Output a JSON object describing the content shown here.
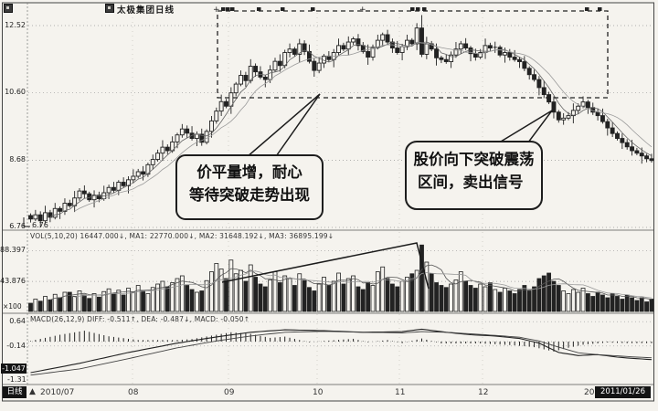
{
  "colors": {
    "paper": "#f5f3ee",
    "ink": "#222222",
    "gray": "#888888"
  },
  "header": {
    "title": "太极集团日线"
  },
  "chart_data": {
    "type": "candlestick",
    "title": "太极集团日线",
    "x_axis": {
      "labels": [
        "2010/07",
        "08",
        "09",
        "10",
        "11",
        "12",
        "2011/01/26"
      ]
    },
    "price_pane": {
      "ylabels": [
        "12.52",
        "10.60",
        "8.68",
        "6.76"
      ],
      "ymin": 6.76,
      "ymax": 12.52,
      "tag": "6.76",
      "open_first": 7.1,
      "wick_up": [
        0.06,
        0.14,
        0.1,
        0.2,
        0.08,
        0.16
      ],
      "wick_dn": [
        0.1,
        0.06,
        0.18,
        0.08,
        0.14,
        0.06,
        0.22
      ],
      "high_overrides": {
        "80": 12.82
      },
      "closes": [
        7.0,
        7.12,
        6.95,
        7.18,
        7.05,
        7.3,
        7.22,
        7.45,
        7.38,
        7.6,
        7.8,
        7.72,
        7.55,
        7.68,
        7.58,
        7.75,
        7.9,
        7.82,
        8.05,
        7.95,
        8.12,
        8.22,
        8.35,
        8.28,
        8.55,
        8.7,
        8.88,
        9.05,
        8.95,
        9.2,
        9.4,
        9.57,
        9.45,
        9.3,
        9.42,
        9.19,
        9.5,
        9.8,
        10.08,
        10.35,
        10.22,
        10.6,
        10.85,
        11.1,
        10.95,
        11.36,
        11.2,
        11.05,
        10.98,
        11.25,
        11.5,
        11.38,
        11.75,
        11.85,
        11.7,
        12.0,
        11.78,
        11.5,
        11.24,
        11.45,
        11.65,
        11.55,
        11.75,
        11.95,
        11.85,
        12.05,
        12.14,
        11.95,
        11.78,
        11.62,
        11.9,
        12.1,
        12.26,
        12.05,
        11.88,
        11.75,
        11.92,
        12.1,
        12.0,
        12.45,
        11.7,
        12.0,
        11.85,
        11.6,
        11.55,
        11.49,
        11.68,
        11.85,
        12.0,
        11.88,
        11.72,
        11.62,
        11.75,
        11.95,
        11.88,
        11.9,
        11.68,
        11.75,
        11.62,
        11.55,
        11.49,
        11.3,
        11.12,
        10.98,
        10.75,
        10.55,
        10.34,
        10.05,
        9.83,
        9.88,
        9.95,
        10.1,
        10.22,
        10.34,
        10.18,
        10.05,
        9.95,
        9.78,
        9.6,
        9.44,
        9.3,
        9.18,
        9.06,
        8.95,
        8.88,
        8.8,
        8.72,
        8.67
      ]
    },
    "volume_pane": {
      "header": "VOL(5,10,20) 16447.000↓, MA1: 22770.000↓, MA2: 31648.192↓, MA3: 36895.199↓",
      "ylabels": [
        "88.397",
        "43.876"
      ],
      "unit": "×100",
      "values": [
        12,
        18,
        15,
        22,
        17,
        25,
        20,
        28,
        28,
        22,
        30,
        24,
        19,
        26,
        21,
        29,
        33,
        26,
        31,
        24,
        34,
        28,
        38,
        30,
        26,
        35,
        40,
        44,
        36,
        42,
        48,
        52,
        38,
        32,
        28,
        30,
        45,
        58,
        70,
        62,
        48,
        75,
        55,
        60,
        44,
        68,
        50,
        40,
        36,
        46,
        58,
        42,
        52,
        48,
        38,
        55,
        45,
        35,
        30,
        40,
        50,
        38,
        44,
        56,
        40,
        48,
        52,
        36,
        32,
        42,
        38,
        58,
        65,
        48,
        40,
        36,
        44,
        50,
        55,
        60,
        97,
        72,
        55,
        42,
        38,
        35,
        40,
        46,
        58,
        44,
        38,
        34,
        40,
        36,
        42,
        32,
        28,
        34,
        30,
        26,
        32,
        38,
        30,
        36,
        48,
        52,
        56,
        44,
        38,
        30,
        26,
        32,
        28,
        34,
        26,
        22,
        28,
        24,
        20,
        26,
        22,
        18,
        24,
        20,
        16,
        20,
        14,
        18
      ]
    },
    "macd_pane": {
      "header": "MACD(26,12,9) DIFF: -0.511↑, DEA: -0.487↓, MACD: -0.050↑",
      "ylabel_top": "0.64",
      "ylabel_mid": "-0.14",
      "min_box": "-1.047",
      "ylabel_bottom": "-1.31",
      "diff_anchors": [
        [
          0,
          -1.0
        ],
        [
          10,
          -0.7
        ],
        [
          20,
          -0.35
        ],
        [
          30,
          -0.05
        ],
        [
          38,
          0.15
        ],
        [
          45,
          0.3
        ],
        [
          52,
          0.38
        ],
        [
          60,
          0.35
        ],
        [
          68,
          0.3
        ],
        [
          76,
          0.32
        ],
        [
          80,
          0.4
        ],
        [
          85,
          0.3
        ],
        [
          90,
          0.22
        ],
        [
          95,
          0.18
        ],
        [
          100,
          0.1
        ],
        [
          104,
          -0.05
        ],
        [
          108,
          -0.35
        ],
        [
          112,
          -0.45
        ],
        [
          116,
          -0.42
        ],
        [
          120,
          -0.5
        ],
        [
          124,
          -0.55
        ],
        [
          127,
          -0.58
        ]
      ],
      "dea_anchors": [
        [
          0,
          -1.08
        ],
        [
          10,
          -0.88
        ],
        [
          20,
          -0.55
        ],
        [
          30,
          -0.2
        ],
        [
          38,
          0.02
        ],
        [
          45,
          0.18
        ],
        [
          52,
          0.3
        ],
        [
          60,
          0.33
        ],
        [
          68,
          0.3
        ],
        [
          76,
          0.28
        ],
        [
          80,
          0.32
        ],
        [
          85,
          0.3
        ],
        [
          90,
          0.25
        ],
        [
          95,
          0.2
        ],
        [
          100,
          0.14
        ],
        [
          104,
          0.02
        ],
        [
          108,
          -0.18
        ],
        [
          112,
          -0.36
        ],
        [
          116,
          -0.42
        ],
        [
          120,
          -0.46
        ],
        [
          124,
          -0.5
        ],
        [
          127,
          -0.52
        ]
      ],
      "hist_anchors": [
        [
          0,
          0.02
        ],
        [
          6,
          0.22
        ],
        [
          11,
          0.35
        ],
        [
          16,
          0.17
        ],
        [
          22,
          0.05
        ],
        [
          30,
          0.05
        ],
        [
          33,
          0.08
        ],
        [
          38,
          0.22
        ],
        [
          41,
          0.3
        ],
        [
          45,
          0.25
        ],
        [
          49,
          0.12
        ],
        [
          52,
          0.16
        ],
        [
          57,
          -0.02
        ],
        [
          60,
          0.02
        ],
        [
          66,
          0.09
        ],
        [
          69,
          -0.02
        ],
        [
          73,
          0.05
        ],
        [
          76,
          -0.05
        ],
        [
          80,
          0.1
        ],
        [
          84,
          -0.06
        ],
        [
          88,
          -0.06
        ],
        [
          92,
          -0.06
        ],
        [
          99,
          -0.12
        ],
        [
          103,
          -0.18
        ],
        [
          107,
          -0.32
        ],
        [
          110,
          -0.2
        ],
        [
          113,
          -0.1
        ],
        [
          118,
          -0.03
        ],
        [
          122,
          -0.05
        ],
        [
          127,
          -0.05
        ]
      ]
    }
  },
  "annotations": {
    "bubbles": [
      {
        "lines": [
          "价平量增，耐心",
          "等待突破走势出现"
        ]
      },
      {
        "lines": [
          "股价向下突破震荡",
          "区间，卖出信号"
        ]
      }
    ],
    "box_top_markers": [
      242,
      247,
      252,
      281,
      307,
      340,
      449,
      455,
      462,
      640,
      654
    ],
    "box_top_plus": [
      233,
      393
    ]
  },
  "footer": {
    "period": "日线",
    "triangle": "▲",
    "pre": "20",
    "date": "2011/01/26"
  }
}
